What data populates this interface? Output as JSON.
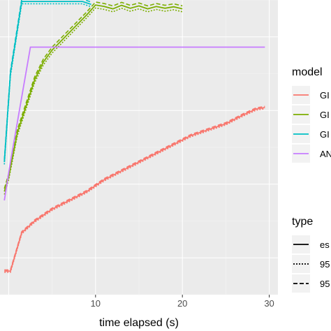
{
  "chart_data": {
    "type": "line",
    "xlabel": "time elapsed (s)",
    "ylabel": "",
    "x_ticks": [
      10,
      20,
      30
    ],
    "xlim": [
      -1,
      31
    ],
    "ylim": [
      0,
      1
    ],
    "grid": true,
    "legend_placement": "right",
    "legends": [
      {
        "title": "model",
        "items": [
          {
            "label": "GI",
            "color": "#F8766D"
          },
          {
            "label": "GI",
            "color": "#7CAE00"
          },
          {
            "label": "GI",
            "color": "#00BFC4"
          },
          {
            "label": "AN",
            "color": "#C77CFF"
          }
        ]
      },
      {
        "title": "type",
        "items": [
          {
            "label": "es",
            "dash": "solid"
          },
          {
            "label": "95",
            "dash": "dotted"
          },
          {
            "label": "95",
            "dash": "dashed"
          }
        ]
      }
    ],
    "series": [
      {
        "color": "#F8766D",
        "band": 0.004,
        "x": [
          -0.5,
          0.2,
          1.5,
          3,
          5,
          7,
          9,
          11,
          13,
          15,
          17,
          19,
          21,
          23,
          25,
          27,
          28.5,
          29.5
        ],
        "y": [
          0.08,
          0.08,
          0.21,
          0.25,
          0.29,
          0.32,
          0.35,
          0.39,
          0.42,
          0.45,
          0.48,
          0.51,
          0.54,
          0.56,
          0.58,
          0.61,
          0.63,
          0.635
        ]
      },
      {
        "color": "#7CAE00",
        "band": 0.01,
        "x": [
          -0.5,
          0,
          1,
          2,
          3,
          4,
          5,
          6,
          7,
          8,
          9,
          10,
          11,
          12,
          13,
          14,
          15,
          16,
          17,
          18,
          19,
          20
        ],
        "y": [
          0.35,
          0.4,
          0.55,
          0.64,
          0.73,
          0.79,
          0.83,
          0.86,
          0.89,
          0.92,
          0.95,
          0.983,
          0.978,
          0.97,
          0.982,
          0.972,
          0.98,
          0.97,
          0.978,
          0.972,
          0.977,
          0.97
        ]
      },
      {
        "color": "#00BFC4",
        "band": 0.008,
        "x": [
          -0.5,
          0.2,
          1.5,
          3,
          5,
          7,
          8.5,
          9.5
        ],
        "y": [
          0.45,
          0.75,
          0.995,
          0.995,
          0.995,
          0.995,
          0.995,
          0.985
        ]
      },
      {
        "color": "#C77CFF",
        "band": 0,
        "x": [
          -0.5,
          0.2,
          2.5,
          3,
          29.5
        ],
        "y": [
          0.32,
          0.45,
          0.84,
          0.84,
          0.84
        ]
      }
    ]
  }
}
